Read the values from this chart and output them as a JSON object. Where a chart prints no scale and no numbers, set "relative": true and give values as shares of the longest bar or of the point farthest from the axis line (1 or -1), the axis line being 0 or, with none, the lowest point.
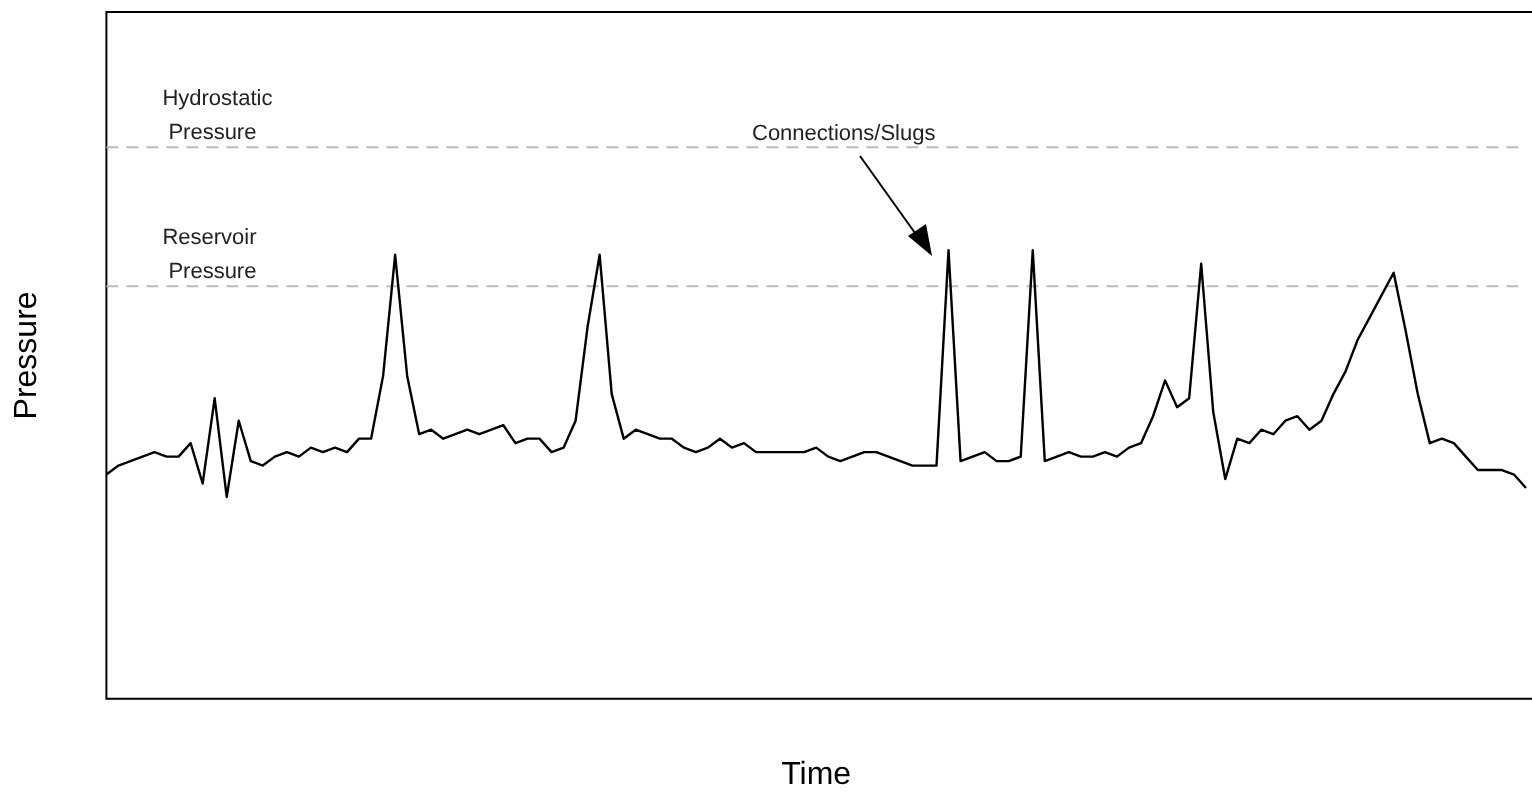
{
  "chart_data": {
    "type": "line",
    "relative": true,
    "xlabel": "Time",
    "ylabel": "Pressure",
    "color": "#000000",
    "marker": "none",
    "line_style": "solid",
    "grid": false,
    "legend": false,
    "categories": [
      null,
      null,
      null,
      null,
      null,
      null,
      null,
      null,
      null,
      null,
      null,
      null,
      null,
      null,
      null,
      null,
      null,
      null,
      null,
      null,
      null,
      null,
      null,
      null,
      null,
      null,
      null,
      null,
      null,
      null,
      null,
      null,
      null,
      null,
      null,
      null,
      null,
      null,
      null,
      null,
      null,
      null,
      null,
      null,
      null,
      null,
      null,
      null,
      null,
      null,
      null,
      null,
      null,
      null,
      null,
      null,
      null,
      null,
      null,
      null,
      null,
      null,
      null,
      null,
      null,
      null,
      null,
      null,
      null,
      null,
      null,
      null,
      null,
      null,
      null,
      null,
      null,
      null,
      null,
      null,
      null,
      null,
      null,
      null,
      null,
      null,
      null,
      null,
      null,
      null,
      null,
      null,
      null,
      null,
      null,
      null,
      null,
      null,
      null,
      null,
      null,
      null,
      null,
      null,
      null,
      null,
      null,
      null,
      null,
      null,
      null,
      null,
      null,
      null,
      null,
      null,
      null,
      null,
      null
    ],
    "values": [
      0.5,
      0.52,
      0.53,
      0.54,
      0.55,
      0.54,
      0.54,
      0.57,
      0.48,
      0.67,
      0.45,
      0.62,
      0.53,
      0.52,
      0.54,
      0.55,
      0.54,
      0.56,
      0.55,
      0.56,
      0.55,
      0.58,
      0.58,
      0.72,
      0.99,
      0.72,
      0.59,
      0.6,
      0.58,
      0.59,
      0.6,
      0.59,
      0.6,
      0.61,
      0.57,
      0.58,
      0.58,
      0.55,
      0.56,
      0.62,
      0.83,
      0.99,
      0.68,
      0.58,
      0.6,
      0.59,
      0.58,
      0.58,
      0.56,
      0.55,
      0.56,
      0.58,
      0.56,
      0.57,
      0.55,
      0.55,
      0.55,
      0.55,
      0.55,
      0.56,
      0.54,
      0.53,
      0.54,
      0.55,
      0.55,
      0.54,
      0.53,
      0.52,
      0.52,
      0.52,
      1.0,
      0.53,
      0.54,
      0.55,
      0.53,
      0.53,
      0.54,
      1.0,
      0.53,
      0.54,
      0.55,
      0.54,
      0.54,
      0.55,
      0.54,
      0.56,
      0.57,
      0.63,
      0.71,
      0.65,
      0.67,
      0.97,
      0.64,
      0.49,
      0.58,
      0.57,
      0.6,
      0.59,
      0.62,
      0.63,
      0.6,
      0.62,
      0.68,
      0.73,
      0.8,
      0.85,
      0.9,
      0.95,
      0.82,
      0.68,
      0.57,
      0.58,
      0.57,
      0.54,
      0.51,
      0.51,
      0.51,
      0.5,
      0.47
    ],
    "ref_lines": [
      {
        "axis": "y",
        "value": 1.23,
        "label": "Hydrostatic Pressure",
        "color": "#bbbbbb",
        "line_style": "dashed"
      },
      {
        "axis": "y",
        "value": 0.92,
        "label": "Reservoir Pressure",
        "color": "#bbbbbb",
        "line_style": "dashed"
      }
    ],
    "annotations": [
      "Connections/Slugs"
    ]
  }
}
